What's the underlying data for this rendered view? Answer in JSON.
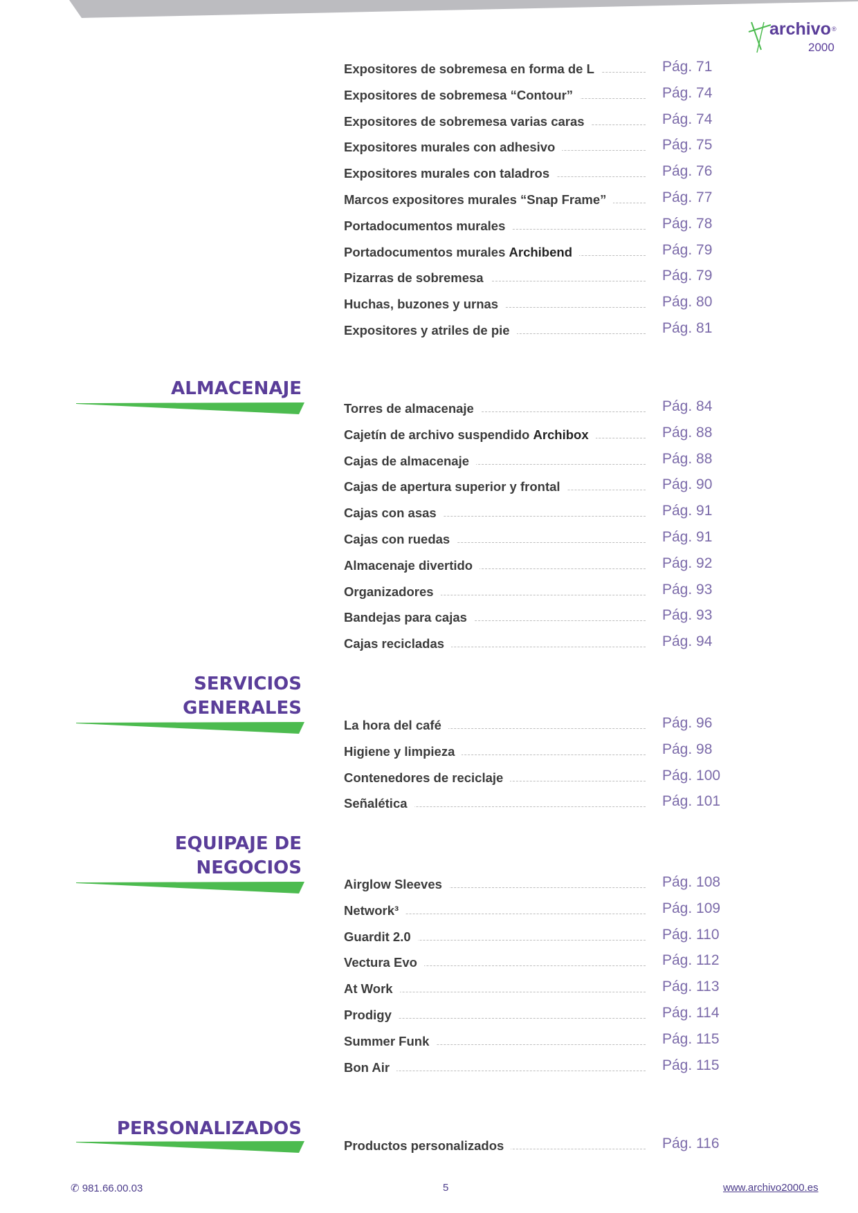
{
  "brand": {
    "logo_text": "archivo",
    "logo_number": "2000",
    "colors": {
      "purple": "#5a3d99",
      "green": "#4cbb4f",
      "gray_band": "#bcbcc0"
    }
  },
  "groups": [
    {
      "heading": [],
      "items": [
        {
          "name": "Expositores de sobremesa en forma de L",
          "page": "Pág. 71"
        },
        {
          "name": "Expositores de sobremesa “Contour”",
          "page": "Pág. 74"
        },
        {
          "name": "Expositores de sobremesa varias caras",
          "page": "Pág. 74"
        },
        {
          "name": "Expositores murales con adhesivo",
          "page": "Pág. 75"
        },
        {
          "name": "Expositores murales con taladros",
          "page": "Pág. 76"
        },
        {
          "name": "Marcos expositores murales “Snap Frame”",
          "page": "Pág. 77"
        },
        {
          "name": "Portadocumentos murales",
          "page": "Pág. 78"
        },
        {
          "name": "Portadocumentos murales ",
          "bold": "Archibend",
          "page": "Pág. 79"
        },
        {
          "name": "Pizarras de sobremesa",
          "page": "Pág. 79"
        },
        {
          "name": "Huchas, buzones y urnas",
          "page": "Pág. 80"
        },
        {
          "name": "Expositores y atriles de pie",
          "page": "Pág. 81"
        }
      ]
    },
    {
      "heading": [
        "ALMACENAJE"
      ],
      "items": [
        {
          "name": "Torres de almacenaje",
          "page": "Pág. 84"
        },
        {
          "name": "Cajetín de archivo suspendido ",
          "bold": "Archibox",
          "page": "Pág. 88"
        },
        {
          "name": "Cajas de almacenaje",
          "page": "Pág. 88"
        },
        {
          "name": "Cajas de apertura superior y frontal",
          "page": "Pág. 90"
        },
        {
          "name": "Cajas con asas",
          "page": "Pág. 91"
        },
        {
          "name": "Cajas con ruedas",
          "page": "Pág. 91"
        },
        {
          "name": "Almacenaje divertido",
          "page": "Pág. 92"
        },
        {
          "name": "Organizadores",
          "page": "Pág. 93"
        },
        {
          "name": "Bandejas para cajas",
          "page": "Pág. 93"
        },
        {
          "name": "Cajas recicladas",
          "page": "Pág. 94"
        }
      ]
    },
    {
      "heading": [
        "SERVICIOS",
        "GENERALES"
      ],
      "items": [
        {
          "name": "La hora del café",
          "page": "Pág. 96"
        },
        {
          "name": "Higiene y limpieza",
          "page": "Pág. 98"
        },
        {
          "name": "Contenedores de reciclaje",
          "page": "Pág. 100"
        },
        {
          "name": "Señalética",
          "page": "Pág. 101"
        }
      ]
    },
    {
      "heading": [
        "EQUIPAJE DE",
        "NEGOCIOS"
      ],
      "items": [
        {
          "name": "Airglow Sleeves",
          "page": "Pág. 108"
        },
        {
          "name": "Network³",
          "page": "Pág. 109"
        },
        {
          "name": "Guardit 2.0",
          "page": "Pág. 110"
        },
        {
          "name": "Vectura Evo",
          "page": "Pág. 112"
        },
        {
          "name": "At Work",
          "page": "Pág. 113"
        },
        {
          "name": "Prodigy",
          "page": "Pág. 114"
        },
        {
          "name": "Summer Funk",
          "page": "Pág. 115"
        },
        {
          "name": "Bon Air",
          "page": "Pág. 115"
        }
      ]
    },
    {
      "heading": [
        "PERSONALIZADOS"
      ],
      "items": [
        {
          "name": "Productos personalizados",
          "page": "Pág. 116"
        }
      ]
    }
  ],
  "footer": {
    "phone": "981.66.00.03",
    "page_number": "5",
    "website": "www.archivo2000.es",
    "phone_icon": "phone-icon"
  }
}
